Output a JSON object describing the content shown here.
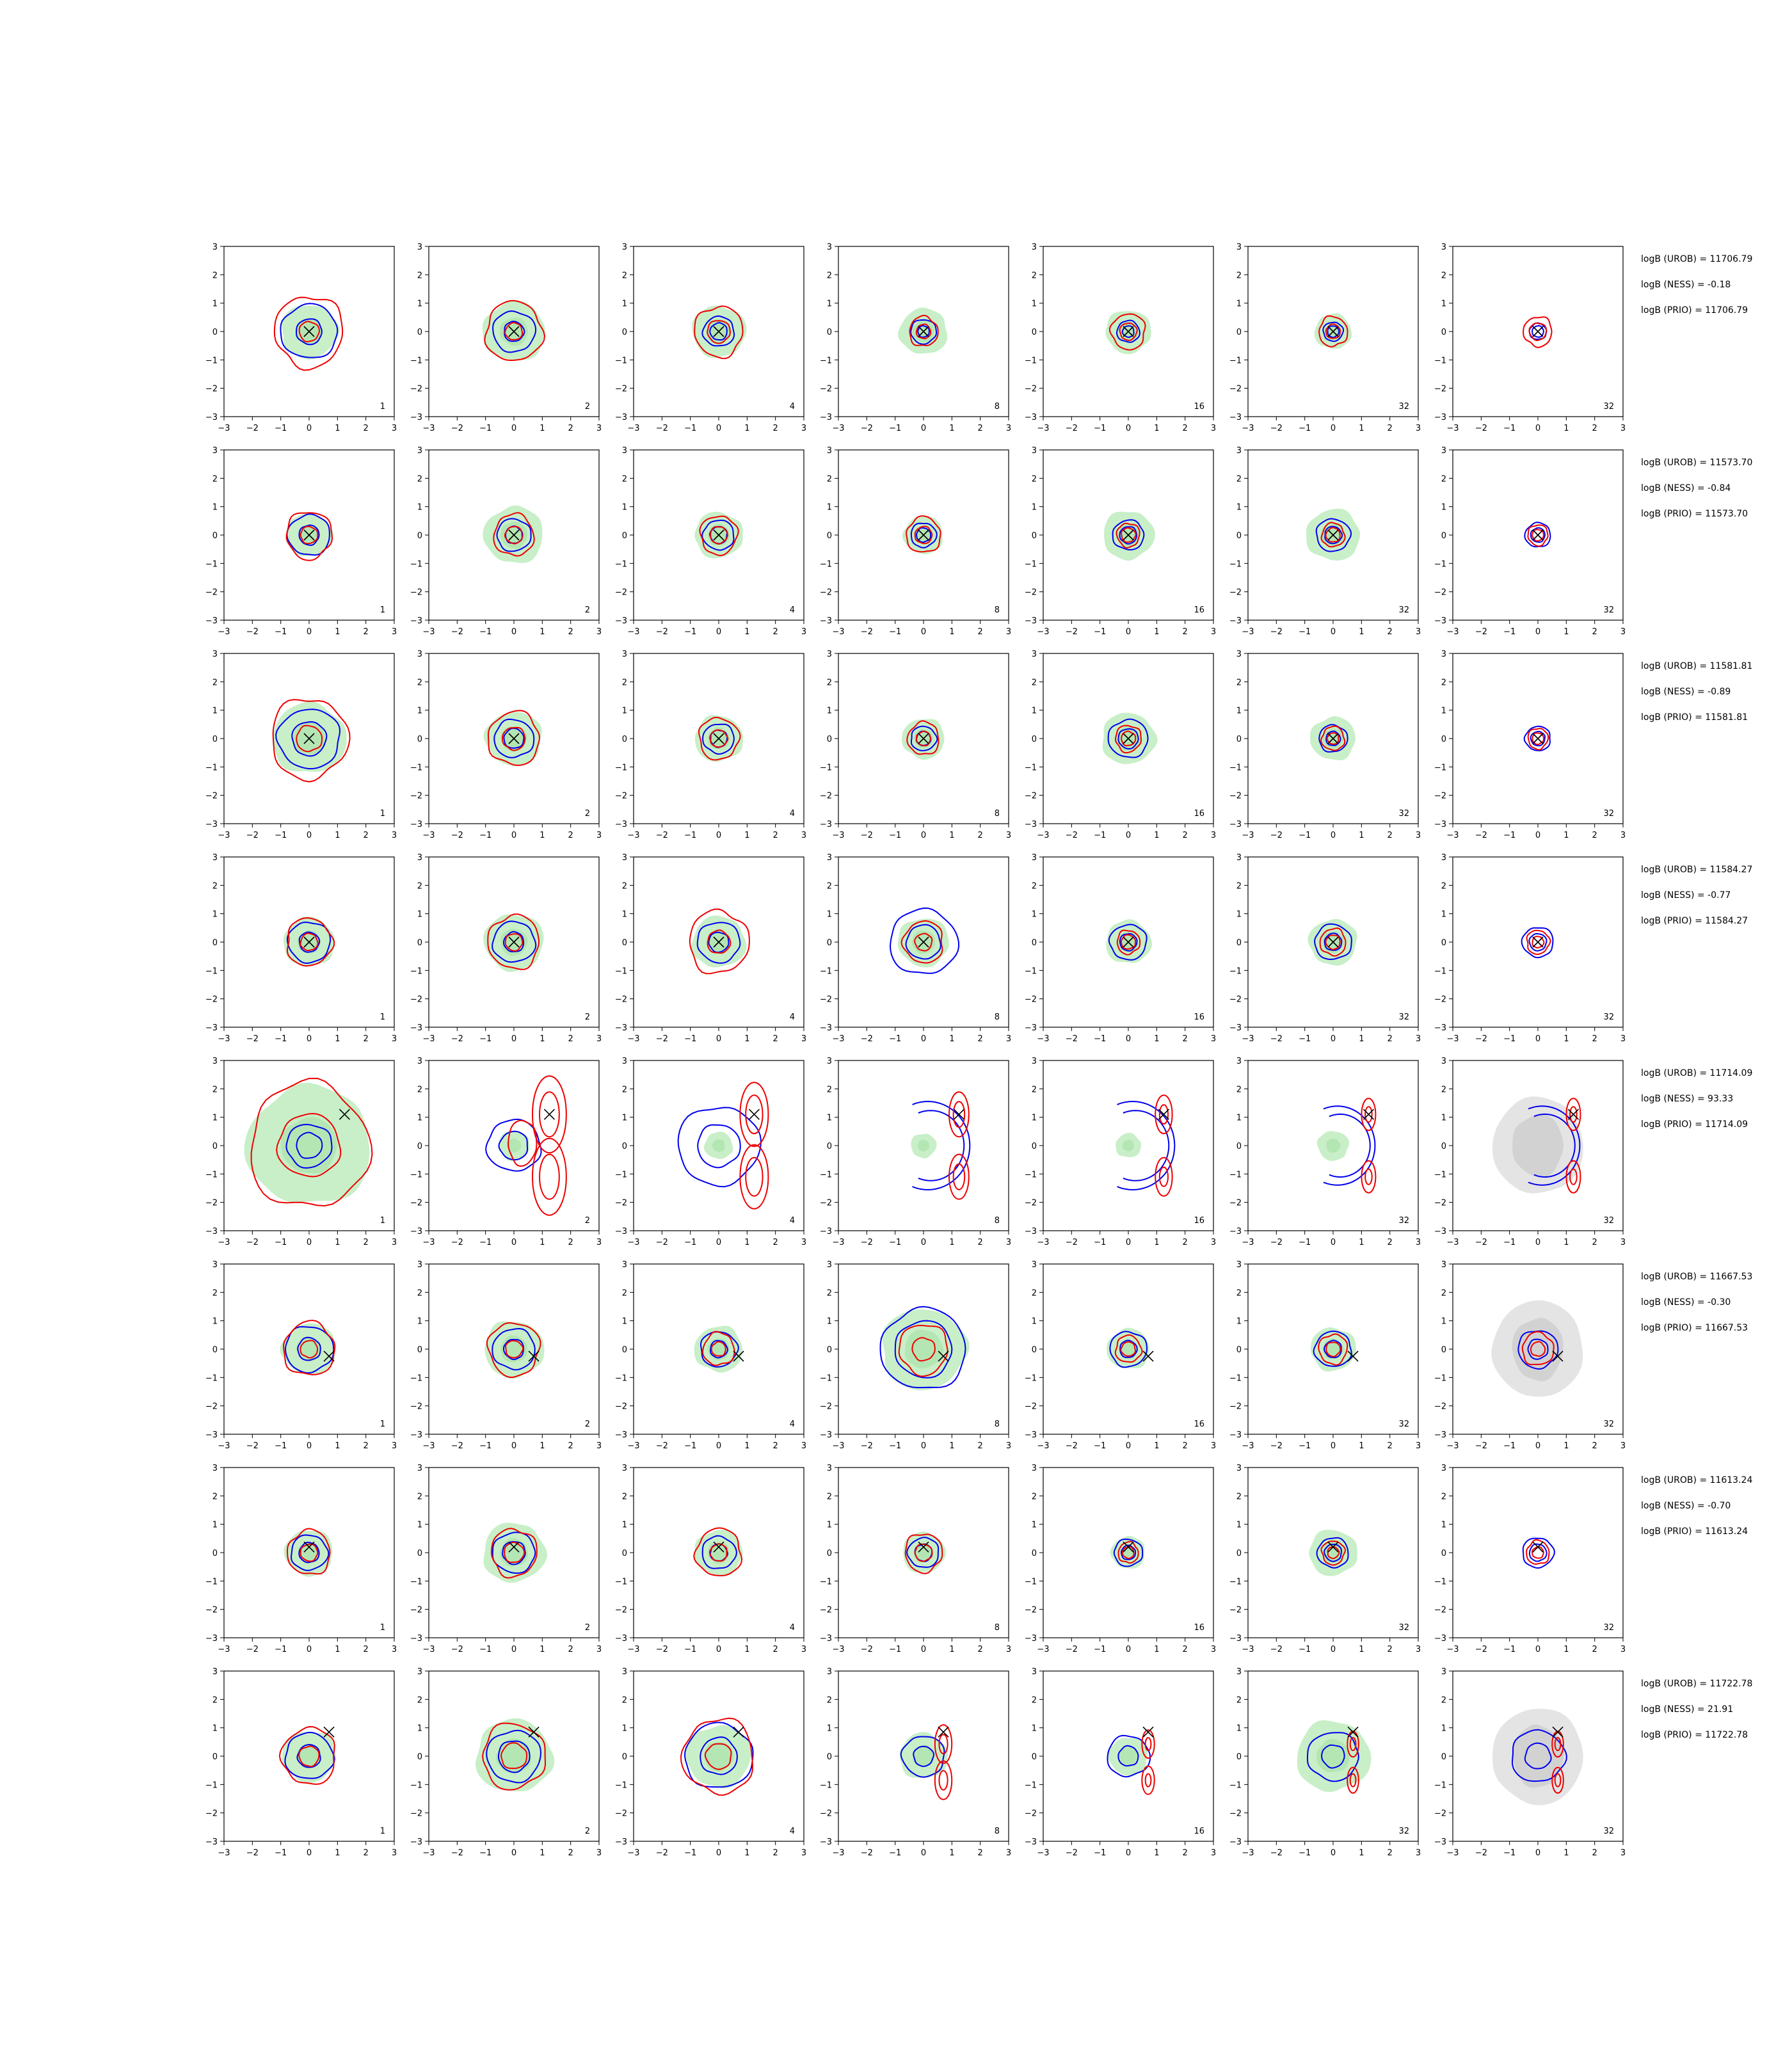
{
  "chart_data": {
    "type": "contour",
    "layout": {
      "rows": 8,
      "cols": 7
    },
    "xlim": [
      -3,
      3
    ],
    "ylim": [
      -3,
      3
    ],
    "xticks": [
      -3,
      -2,
      -1,
      0,
      1,
      2,
      3
    ],
    "yticks": [
      -3,
      -2,
      -1,
      0,
      1,
      2,
      3
    ],
    "column_labels": [
      "1",
      "2",
      "4",
      "8",
      "16",
      "32",
      "32"
    ],
    "colors": {
      "fill": "#c8efc8",
      "gray_fill": "#e4e4e4",
      "gray_dark": "#d2d2d2",
      "blue": "#0000ee",
      "red": "#ee0000",
      "marker": "#000000"
    },
    "rows": [
      {
        "true_point": [
          0,
          0
        ],
        "annotations": [
          "logB (UROB) = 11706.79",
          "logB (NESS) = -0.18",
          "logB (PRIO) = 11706.79"
        ],
        "panels": [
          {
            "label": "1",
            "fill": 1.0,
            "blue": [
              1.0,
              0.45
            ],
            "red": [
              1.2,
              0.35
            ],
            "gray": false
          },
          {
            "label": "2",
            "fill": 1.1,
            "blue": [
              0.75,
              0.35
            ],
            "red": [
              1.0,
              0.3
            ],
            "gray": false
          },
          {
            "label": "4",
            "fill": 0.95,
            "blue": [
              0.55,
              0.3
            ],
            "red": [
              0.85,
              0.4
            ],
            "gray": false
          },
          {
            "label": "8",
            "fill": 0.85,
            "blue": [
              0.45,
              0.2
            ],
            "red": [
              0.5,
              0.25
            ],
            "gray": false
          },
          {
            "label": "16",
            "fill": 0.8,
            "blue": [
              0.4,
              0.2
            ],
            "red": [
              0.6,
              0.3
            ],
            "gray": false
          },
          {
            "label": "32",
            "fill": 0.65,
            "blue": [
              0.35,
              0.2
            ],
            "red": [
              0.5,
              0.25
            ],
            "gray": false
          },
          {
            "label": "32",
            "fill": 0.0,
            "blue": [
              0.3,
              0.2
            ],
            "red": [
              0.5,
              0.3
            ],
            "gray": false
          }
        ]
      },
      {
        "true_point": [
          0,
          0
        ],
        "annotations": [
          "logB (UROB) = 11573.70",
          "logB (NESS) = -0.84",
          "logB (PRIO) = 11573.70"
        ],
        "panels": [
          {
            "label": "1",
            "fill": 0.8,
            "blue": [
              0.75,
              0.35
            ],
            "red": [
              0.8,
              0.3
            ],
            "gray": false
          },
          {
            "label": "2",
            "fill": 1.05,
            "blue": [
              0.6,
              0.3
            ],
            "red": [
              0.7,
              0.3
            ],
            "gray": false
          },
          {
            "label": "4",
            "fill": 0.85,
            "blue": [
              0.55,
              0.3
            ],
            "red": [
              0.65,
              0.3
            ],
            "gray": false
          },
          {
            "label": "8",
            "fill": 0.7,
            "blue": [
              0.45,
              0.25
            ],
            "red": [
              0.6,
              0.3
            ],
            "gray": false
          },
          {
            "label": "16",
            "fill": 0.9,
            "blue": [
              0.55,
              0.3
            ],
            "red": [
              0.4,
              0.25
            ],
            "gray": false
          },
          {
            "label": "32",
            "fill": 0.95,
            "blue": [
              0.6,
              0.3
            ],
            "red": [
              0.4,
              0.25
            ],
            "gray": false
          },
          {
            "label": "32",
            "fill": 0.0,
            "blue": [
              0.45,
              0.25
            ],
            "red": [
              0.35,
              0.2
            ],
            "gray": false
          }
        ]
      },
      {
        "true_point": [
          0,
          0
        ],
        "annotations": [
          "logB (UROB) = 11581.81",
          "logB (NESS) = -0.89",
          "logB (PRIO) = 11581.81"
        ],
        "panels": [
          {
            "label": "1",
            "fill": 1.3,
            "blue": [
              1.1,
              0.6
            ],
            "red": [
              1.35,
              0.45
            ],
            "gray": false
          },
          {
            "label": "2",
            "fill": 1.0,
            "blue": [
              0.7,
              0.35
            ],
            "red": [
              0.9,
              0.4
            ],
            "gray": false
          },
          {
            "label": "4",
            "fill": 0.85,
            "blue": [
              0.55,
              0.3
            ],
            "red": [
              0.7,
              0.3
            ],
            "gray": false
          },
          {
            "label": "8",
            "fill": 0.75,
            "blue": [
              0.45,
              0.25
            ],
            "red": [
              0.55,
              0.25
            ],
            "gray": false
          },
          {
            "label": "16",
            "fill": 0.95,
            "blue": [
              0.7,
              0.35
            ],
            "red": [
              0.45,
              0.25
            ],
            "gray": false
          },
          {
            "label": "32",
            "fill": 0.8,
            "blue": [
              0.5,
              0.25
            ],
            "red": [
              0.4,
              0.2
            ],
            "gray": false
          },
          {
            "label": "32",
            "fill": 0.0,
            "blue": [
              0.45,
              0.25
            ],
            "red": [
              0.35,
              0.2
            ],
            "gray": false
          }
        ]
      },
      {
        "true_point": [
          0,
          0
        ],
        "annotations": [
          "logB (UROB) = 11584.27",
          "logB (NESS) = -0.77",
          "logB (PRIO) = 11584.27"
        ],
        "panels": [
          {
            "label": "1",
            "fill": 0.9,
            "blue": [
              0.75,
              0.35
            ],
            "red": [
              0.8,
              0.3
            ],
            "gray": false
          },
          {
            "label": "2",
            "fill": 1.05,
            "blue": [
              0.75,
              0.35
            ],
            "red": [
              0.9,
              0.3
            ],
            "gray": false
          },
          {
            "label": "4",
            "fill": 0.95,
            "blue": [
              0.75,
              0.35
            ],
            "red": [
              1.05,
              0.4
            ],
            "gray": false
          },
          {
            "label": "8",
            "fill": 0.9,
            "blue": [
              1.2,
              0.6
            ],
            "red": [
              0.7,
              0.3
            ],
            "gray": false
          },
          {
            "label": "16",
            "fill": 0.8,
            "blue": [
              0.65,
              0.3
            ],
            "red": [
              0.4,
              0.25
            ],
            "gray": false
          },
          {
            "label": "32",
            "fill": 0.85,
            "blue": [
              0.65,
              0.3
            ],
            "red": [
              0.45,
              0.25
            ],
            "gray": false
          },
          {
            "label": "32",
            "fill": 0.0,
            "blue": [
              0.55,
              0.3
            ],
            "red": [
              0.4,
              0.2
            ],
            "gray": false
          }
        ]
      },
      {
        "true_point": [
          1.25,
          1.1
        ],
        "annotations": [
          "logB (UROB) = 11714.09",
          "logB (NESS) = 93.33",
          "logB (PRIO) = 11714.09"
        ],
        "panels": [
          {
            "label": "1",
            "fill": 2.2,
            "blue": [
              0.8,
              0.45
            ],
            "red": [
              2.1,
              1.1
            ],
            "gray": false
          },
          {
            "label": "2",
            "fill": 0.55,
            "blue": [
              0.95,
              0.5
            ],
            "red": [
              0.6,
              0.35
            ],
            "gray": false
          },
          {
            "label": "4",
            "fill": 0.5,
            "blue": [
              1.45,
              0.75
            ],
            "red": [
              0.5,
              0.3
            ],
            "gray": false
          },
          {
            "label": "8",
            "fill": 0.45,
            "blue": [
              1.9,
              1.6
            ],
            "red": [
              0.35,
              0.2
            ],
            "gray": false
          },
          {
            "label": "16",
            "fill": 0.45,
            "blue": [
              1.9,
              1.7
            ],
            "red": [
              0.3,
              0.15
            ],
            "gray": false
          },
          {
            "label": "32",
            "fill": 0.55,
            "blue": [
              1.7,
              1.4
            ],
            "red": [
              0.25,
              0.12
            ],
            "gray": false
          },
          {
            "label": "32",
            "fill": 0.0,
            "blue": [
              1.7,
              1.4
            ],
            "red": [
              0.25,
              0.12
            ],
            "gray": true
          }
        ]
      },
      {
        "true_point": [
          0.7,
          -0.25
        ],
        "annotations": [
          "logB (UROB) = 11667.53",
          "logB (NESS) = -0.30",
          "logB (PRIO) = 11667.53"
        ],
        "panels": [
          {
            "label": "1",
            "fill": 0.95,
            "blue": [
              0.85,
              0.4
            ],
            "red": [
              0.9,
              0.3
            ],
            "gray": false
          },
          {
            "label": "2",
            "fill": 1.05,
            "blue": [
              0.75,
              0.35
            ],
            "red": [
              0.9,
              0.3
            ],
            "gray": false
          },
          {
            "label": "4",
            "fill": 0.85,
            "blue": [
              0.65,
              0.3
            ],
            "red": [
              0.55,
              0.25
            ],
            "gray": false
          },
          {
            "label": "8",
            "fill": 1.5,
            "blue": [
              1.5,
              1.0
            ],
            "red": [
              0.85,
              0.4
            ],
            "gray": false
          },
          {
            "label": "16",
            "fill": 0.75,
            "blue": [
              0.65,
              0.3
            ],
            "red": [
              0.45,
              0.25
            ],
            "gray": false
          },
          {
            "label": "32",
            "fill": 0.8,
            "blue": [
              0.65,
              0.3
            ],
            "red": [
              0.5,
              0.25
            ],
            "gray": false
          },
          {
            "label": "32",
            "fill": 0.0,
            "blue": [
              0.7,
              0.35
            ],
            "red": [
              0.55,
              0.25
            ],
            "gray": true
          }
        ]
      },
      {
        "true_point": [
          0,
          0.2
        ],
        "annotations": [
          "logB (UROB) = 11613.24",
          "logB (NESS) = -0.70",
          "logB (PRIO) = 11613.24"
        ],
        "panels": [
          {
            "label": "1",
            "fill": 0.85,
            "blue": [
              0.65,
              0.35
            ],
            "red": [
              0.75,
              0.3
            ],
            "gray": false
          },
          {
            "label": "2",
            "fill": 1.1,
            "blue": [
              0.75,
              0.4
            ],
            "red": [
              0.8,
              0.35
            ],
            "gray": false
          },
          {
            "label": "4",
            "fill": 0.85,
            "blue": [
              0.6,
              0.3
            ],
            "red": [
              0.8,
              0.3
            ],
            "gray": false
          },
          {
            "label": "8",
            "fill": 0.75,
            "blue": [
              0.55,
              0.3
            ],
            "red": [
              0.65,
              0.3
            ],
            "gray": false
          },
          {
            "label": "16",
            "fill": 0.6,
            "blue": [
              0.5,
              0.25
            ],
            "red": [
              0.35,
              0.2
            ],
            "gray": false
          },
          {
            "label": "32",
            "fill": 0.85,
            "blue": [
              0.55,
              0.3
            ],
            "red": [
              0.4,
              0.2
            ],
            "gray": false
          },
          {
            "label": "32",
            "fill": 0.0,
            "blue": [
              0.55,
              0.3
            ],
            "red": [
              0.4,
              0.2
            ],
            "gray": false
          }
        ]
      },
      {
        "true_point": [
          0.7,
          0.85
        ],
        "annotations": [
          "logB (UROB) = 11722.78",
          "logB (NESS) = 21.91",
          "logB (PRIO) = 11722.78"
        ],
        "panels": [
          {
            "label": "1",
            "fill": 0.95,
            "blue": [
              0.85,
              0.4
            ],
            "red": [
              0.95,
              0.35
            ],
            "gray": false
          },
          {
            "label": "2",
            "fill": 1.35,
            "blue": [
              0.95,
              0.55
            ],
            "red": [
              1.1,
              0.45
            ],
            "gray": false
          },
          {
            "label": "4",
            "fill": 1.15,
            "blue": [
              1.2,
              0.65
            ],
            "red": [
              1.25,
              0.45
            ],
            "gray": false
          },
          {
            "label": "8",
            "fill": 0.85,
            "blue": [
              0.75,
              0.35
            ],
            "red": [
              0.3,
              0.15
            ],
            "gray": false
          },
          {
            "label": "16",
            "fill": 0.7,
            "blue": [
              0.75,
              0.35
            ],
            "red": [
              0.22,
              0.1
            ],
            "gray": false
          },
          {
            "label": "32",
            "fill": 1.3,
            "blue": [
              0.9,
              0.4
            ],
            "red": [
              0.2,
              0.1
            ],
            "gray": false
          },
          {
            "label": "32",
            "fill": 0.0,
            "blue": [
              0.95,
              0.45
            ],
            "red": [
              0.2,
              0.1
            ],
            "gray": true
          }
        ]
      }
    ]
  }
}
